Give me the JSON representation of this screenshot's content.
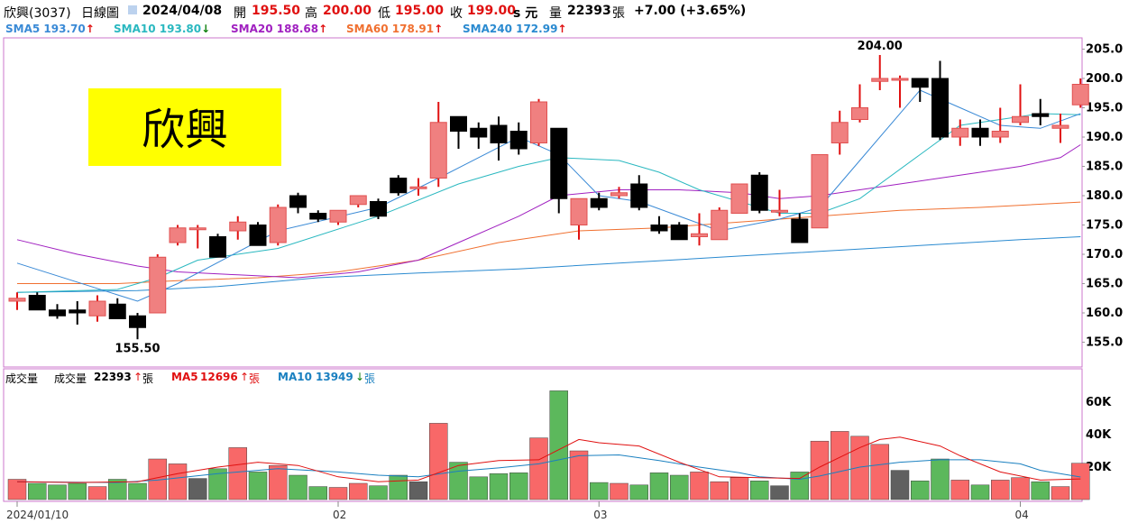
{
  "header": {
    "name_code": "欣興(3037)",
    "period": "日線圖",
    "date": "2024/04/08",
    "open_label": "開",
    "open": "195.50",
    "high_label": "高",
    "high": "200.00",
    "low_label": "低",
    "low": "195.00",
    "close_label": "收",
    "close": "199.00",
    "unit": "s 元",
    "vol_label": "量",
    "vol": "22393",
    "vol_unit": "張",
    "change": "+7.00 (+3.65%)"
  },
  "sma_legend": [
    {
      "label": "SMA5",
      "value": "193.70",
      "dir": "↑",
      "color": "#3a8ad6"
    },
    {
      "label": "SMA10",
      "value": "193.80",
      "dir": "↓",
      "color": "#2ab8c0"
    },
    {
      "label": "SMA20",
      "value": "188.68",
      "dir": "↑",
      "color": "#a020c0"
    },
    {
      "label": "SMA60",
      "value": "178.91",
      "dir": "↑",
      "color": "#f07030"
    },
    {
      "label": "SMA240",
      "value": "172.99",
      "dir": "↑",
      "color": "#2a8ad0"
    }
  ],
  "stock_label": "欣興",
  "volume_legend": {
    "title": "成交量",
    "vol_label": "成交量",
    "vol_value": "22393",
    "vol_dir": "↑",
    "vol_unit": "張",
    "ma5_label": "MA5",
    "ma5_value": "12696",
    "ma5_dir": "↑",
    "ma5_unit": "張",
    "ma10_label": "MA10",
    "ma10_value": "13949",
    "ma10_dir": "↓",
    "ma10_unit": "張"
  },
  "annotations": {
    "high_label": "204.00",
    "low_label": "155.50"
  },
  "chart_data": {
    "type": "candlestick",
    "price_axis": {
      "ticks": [
        "205.0",
        "200.0",
        "195.0",
        "190.0",
        "185.0",
        "180.0",
        "175.0",
        "170.0",
        "165.0",
        "160.0",
        "155.0"
      ],
      "range": [
        150.8,
        208.0
      ]
    },
    "volume_axis": {
      "ticks": [
        "60K",
        "40K",
        "20K"
      ],
      "range": [
        0,
        70000
      ]
    },
    "x_labels": [
      "2024/01/10",
      "02",
      "03",
      "04"
    ],
    "x_label_index": [
      0,
      16,
      29,
      50
    ],
    "candles": [
      {
        "o": 162.0,
        "h": 163.5,
        "l": 160.5,
        "c": 162.5,
        "v": 12500
      },
      {
        "o": 163.0,
        "h": 163.5,
        "l": 160.5,
        "c": 160.5,
        "v": 10000
      },
      {
        "o": 160.5,
        "h": 161.5,
        "l": 159.0,
        "c": 159.5,
        "v": 9000
      },
      {
        "o": 160.5,
        "h": 162.0,
        "l": 158.0,
        "c": 160.0,
        "v": 10000
      },
      {
        "o": 159.5,
        "h": 163.0,
        "l": 158.5,
        "c": 162.0,
        "v": 8000
      },
      {
        "o": 161.5,
        "h": 162.5,
        "l": 159.0,
        "c": 159.0,
        "v": 12500
      },
      {
        "o": 159.5,
        "h": 160.0,
        "l": 155.5,
        "c": 157.5,
        "v": 10000
      },
      {
        "o": 160.0,
        "h": 170.0,
        "l": 160.0,
        "c": 169.5,
        "v": 25000
      },
      {
        "o": 172.0,
        "h": 175.0,
        "l": 171.5,
        "c": 174.5,
        "v": 22000
      },
      {
        "o": 174.5,
        "h": 175.0,
        "l": 171.0,
        "c": 174.5,
        "v": 13000
      },
      {
        "o": 173.0,
        "h": 173.5,
        "l": 169.5,
        "c": 169.5,
        "v": 19000
      },
      {
        "o": 174.0,
        "h": 176.5,
        "l": 172.5,
        "c": 175.5,
        "v": 32000
      },
      {
        "o": 175.0,
        "h": 175.5,
        "l": 171.5,
        "c": 171.5,
        "v": 17000
      },
      {
        "o": 172.0,
        "h": 178.5,
        "l": 171.5,
        "c": 178.0,
        "v": 21000
      },
      {
        "o": 180.0,
        "h": 180.5,
        "l": 177.0,
        "c": 178.0,
        "v": 15000
      },
      {
        "o": 177.0,
        "h": 177.5,
        "l": 175.5,
        "c": 176.0,
        "v": 8000
      },
      {
        "o": 175.5,
        "h": 177.5,
        "l": 175.0,
        "c": 177.5,
        "v": 7500
      },
      {
        "o": 178.5,
        "h": 180.0,
        "l": 178.0,
        "c": 180.0,
        "v": 10000
      },
      {
        "o": 179.0,
        "h": 179.5,
        "l": 176.0,
        "c": 176.5,
        "v": 8500
      },
      {
        "o": 183.0,
        "h": 183.5,
        "l": 180.0,
        "c": 180.5,
        "v": 15000
      },
      {
        "o": 181.5,
        "h": 183.0,
        "l": 180.0,
        "c": 181.5,
        "v": 11000
      },
      {
        "o": 183.0,
        "h": 196.0,
        "l": 181.5,
        "c": 192.5,
        "v": 47000
      },
      {
        "o": 193.5,
        "h": 193.5,
        "l": 188.0,
        "c": 191.0,
        "v": 23000
      },
      {
        "o": 191.5,
        "h": 192.5,
        "l": 188.0,
        "c": 190.0,
        "v": 14000
      },
      {
        "o": 192.0,
        "h": 193.5,
        "l": 186.0,
        "c": 189.0,
        "v": 16000
      },
      {
        "o": 191.0,
        "h": 192.5,
        "l": 187.0,
        "c": 188.0,
        "v": 16500
      },
      {
        "o": 189.0,
        "h": 196.5,
        "l": 188.5,
        "c": 196.0,
        "v": 38000
      },
      {
        "o": 191.5,
        "h": 191.5,
        "l": 177.0,
        "c": 179.5,
        "v": 67000
      },
      {
        "o": 175.0,
        "h": 179.5,
        "l": 172.5,
        "c": 179.5,
        "v": 30000
      },
      {
        "o": 179.5,
        "h": 180.5,
        "l": 177.5,
        "c": 178.0,
        "v": 10500
      },
      {
        "o": 180.0,
        "h": 181.5,
        "l": 179.5,
        "c": 180.5,
        "v": 10000
      },
      {
        "o": 182.0,
        "h": 183.5,
        "l": 177.5,
        "c": 178.0,
        "v": 9000
      },
      {
        "o": 175.0,
        "h": 176.5,
        "l": 173.5,
        "c": 174.0,
        "v": 16500
      },
      {
        "o": 175.0,
        "h": 175.5,
        "l": 172.5,
        "c": 172.5,
        "v": 15000
      },
      {
        "o": 173.0,
        "h": 177.0,
        "l": 171.5,
        "c": 173.5,
        "v": 17000
      },
      {
        "o": 172.5,
        "h": 178.0,
        "l": 172.5,
        "c": 177.5,
        "v": 11000
      },
      {
        "o": 177.0,
        "h": 182.0,
        "l": 177.0,
        "c": 182.0,
        "v": 13500
      },
      {
        "o": 183.5,
        "h": 184.0,
        "l": 177.0,
        "c": 177.5,
        "v": 11500
      },
      {
        "o": 177.5,
        "h": 181.0,
        "l": 176.5,
        "c": 177.5,
        "v": 8500
      },
      {
        "o": 176.0,
        "h": 177.0,
        "l": 172.0,
        "c": 172.0,
        "v": 17000
      },
      {
        "o": 174.5,
        "h": 187.0,
        "l": 174.5,
        "c": 187.0,
        "v": 36000
      },
      {
        "o": 189.0,
        "h": 194.5,
        "l": 187.0,
        "c": 192.5,
        "v": 42000
      },
      {
        "o": 193.0,
        "h": 199.0,
        "l": 192.5,
        "c": 195.0,
        "v": 39000
      },
      {
        "o": 199.5,
        "h": 204.0,
        "l": 198.0,
        "c": 200.0,
        "v": 34000
      },
      {
        "o": 200.0,
        "h": 200.5,
        "l": 195.0,
        "c": 200.0,
        "v": 18000
      },
      {
        "o": 200.0,
        "h": 200.0,
        "l": 196.0,
        "c": 198.5,
        "v": 11500
      },
      {
        "o": 200.0,
        "h": 203.0,
        "l": 189.5,
        "c": 190.0,
        "v": 25000
      },
      {
        "o": 190.0,
        "h": 193.0,
        "l": 188.5,
        "c": 191.5,
        "v": 12000
      },
      {
        "o": 191.5,
        "h": 193.0,
        "l": 188.5,
        "c": 190.0,
        "v": 9000
      },
      {
        "o": 190.0,
        "h": 195.0,
        "l": 189.0,
        "c": 191.0,
        "v": 12000
      },
      {
        "o": 192.5,
        "h": 199.0,
        "l": 192.0,
        "c": 193.5,
        "v": 13500
      },
      {
        "o": 194.0,
        "h": 196.5,
        "l": 192.0,
        "c": 193.5,
        "v": 11000
      },
      {
        "o": 191.5,
        "h": 194.0,
        "l": 189.0,
        "c": 192.0,
        "v": 8000
      },
      {
        "o": 195.5,
        "h": 200.0,
        "l": 195.0,
        "c": 199.0,
        "v": 22393
      }
    ],
    "sma5": [
      [
        0,
        168.5
      ],
      [
        6,
        162
      ],
      [
        8,
        165
      ],
      [
        13,
        174
      ],
      [
        18,
        178
      ],
      [
        21,
        183
      ],
      [
        25,
        190
      ],
      [
        27,
        187
      ],
      [
        29,
        180
      ],
      [
        31,
        179
      ],
      [
        35,
        174
      ],
      [
        38,
        176
      ],
      [
        40,
        178
      ],
      [
        42,
        186
      ],
      [
        45,
        198
      ],
      [
        47,
        195
      ],
      [
        49,
        192
      ],
      [
        51,
        191.5
      ],
      [
        53,
        194
      ]
    ],
    "sma10": [
      [
        0,
        163.5
      ],
      [
        5,
        164
      ],
      [
        7,
        166
      ],
      [
        9,
        169
      ],
      [
        13,
        171
      ],
      [
        18,
        176.5
      ],
      [
        22,
        182
      ],
      [
        25,
        185
      ],
      [
        27,
        186.5
      ],
      [
        30,
        186
      ],
      [
        32,
        184
      ],
      [
        34,
        181
      ],
      [
        38,
        177
      ],
      [
        40,
        177
      ],
      [
        42,
        179.5
      ],
      [
        45,
        187
      ],
      [
        47,
        192
      ],
      [
        49,
        193
      ],
      [
        51,
        194
      ],
      [
        53,
        193.8
      ]
    ],
    "sma20": [
      [
        0,
        172.5
      ],
      [
        3,
        170
      ],
      [
        6,
        168
      ],
      [
        8,
        167
      ],
      [
        11,
        166.5
      ],
      [
        14,
        166
      ],
      [
        17,
        167
      ],
      [
        20,
        169
      ],
      [
        22,
        172
      ],
      [
        25,
        176.5
      ],
      [
        27,
        180
      ],
      [
        30,
        181
      ],
      [
        33,
        181
      ],
      [
        36,
        180.5
      ],
      [
        38,
        179.5
      ],
      [
        40,
        180
      ],
      [
        42,
        181
      ],
      [
        44,
        182
      ],
      [
        46,
        183
      ],
      [
        48,
        184
      ],
      [
        50,
        185
      ],
      [
        52,
        186.5
      ],
      [
        53,
        188.7
      ]
    ],
    "sma60": [
      [
        0,
        165
      ],
      [
        5,
        165
      ],
      [
        8,
        165.5
      ],
      [
        12,
        166
      ],
      [
        16,
        167
      ],
      [
        20,
        169
      ],
      [
        24,
        172
      ],
      [
        28,
        174
      ],
      [
        32,
        174.5
      ],
      [
        36,
        175.5
      ],
      [
        40,
        176.5
      ],
      [
        44,
        177.5
      ],
      [
        48,
        178
      ],
      [
        53,
        178.9
      ]
    ],
    "sma240": [
      [
        0,
        163.5
      ],
      [
        6,
        163.8
      ],
      [
        10,
        164.5
      ],
      [
        15,
        166
      ],
      [
        20,
        166.8
      ],
      [
        25,
        167.5
      ],
      [
        30,
        168.5
      ],
      [
        35,
        169.5
      ],
      [
        40,
        170.5
      ],
      [
        45,
        171.5
      ],
      [
        50,
        172.5
      ],
      [
        53,
        173
      ]
    ],
    "vol_ma5": [
      [
        0,
        11000
      ],
      [
        3,
        10500
      ],
      [
        6,
        11000
      ],
      [
        8,
        16000
      ],
      [
        10,
        20000
      ],
      [
        12,
        23000
      ],
      [
        14,
        21000
      ],
      [
        16,
        14000
      ],
      [
        18,
        11000
      ],
      [
        20,
        12000
      ],
      [
        22,
        21000
      ],
      [
        24,
        24000
      ],
      [
        26,
        24500
      ],
      [
        28,
        37000
      ],
      [
        29,
        35000
      ],
      [
        31,
        33000
      ],
      [
        33,
        23000
      ],
      [
        35,
        14000
      ],
      [
        37,
        13500
      ],
      [
        39,
        13000
      ],
      [
        40,
        20000
      ],
      [
        42,
        32000
      ],
      [
        43,
        37000
      ],
      [
        44,
        38500
      ],
      [
        46,
        33000
      ],
      [
        47,
        27000
      ],
      [
        49,
        17000
      ],
      [
        51,
        12000
      ],
      [
        53,
        12700
      ]
    ],
    "vol_ma10": [
      [
        0,
        11000
      ],
      [
        5,
        10500
      ],
      [
        7,
        12000
      ],
      [
        10,
        16000
      ],
      [
        13,
        19000
      ],
      [
        16,
        17000
      ],
      [
        18,
        15000
      ],
      [
        20,
        14000
      ],
      [
        22,
        17500
      ],
      [
        24,
        19500
      ],
      [
        26,
        22000
      ],
      [
        28,
        27000
      ],
      [
        30,
        27500
      ],
      [
        32,
        24000
      ],
      [
        34,
        20000
      ],
      [
        36,
        16500
      ],
      [
        37,
        14000
      ],
      [
        39,
        12500
      ],
      [
        40,
        14500
      ],
      [
        42,
        20000
      ],
      [
        44,
        23000
      ],
      [
        46,
        24500
      ],
      [
        48,
        24500
      ],
      [
        50,
        22000
      ],
      [
        51,
        18000
      ],
      [
        53,
        13900
      ]
    ]
  }
}
